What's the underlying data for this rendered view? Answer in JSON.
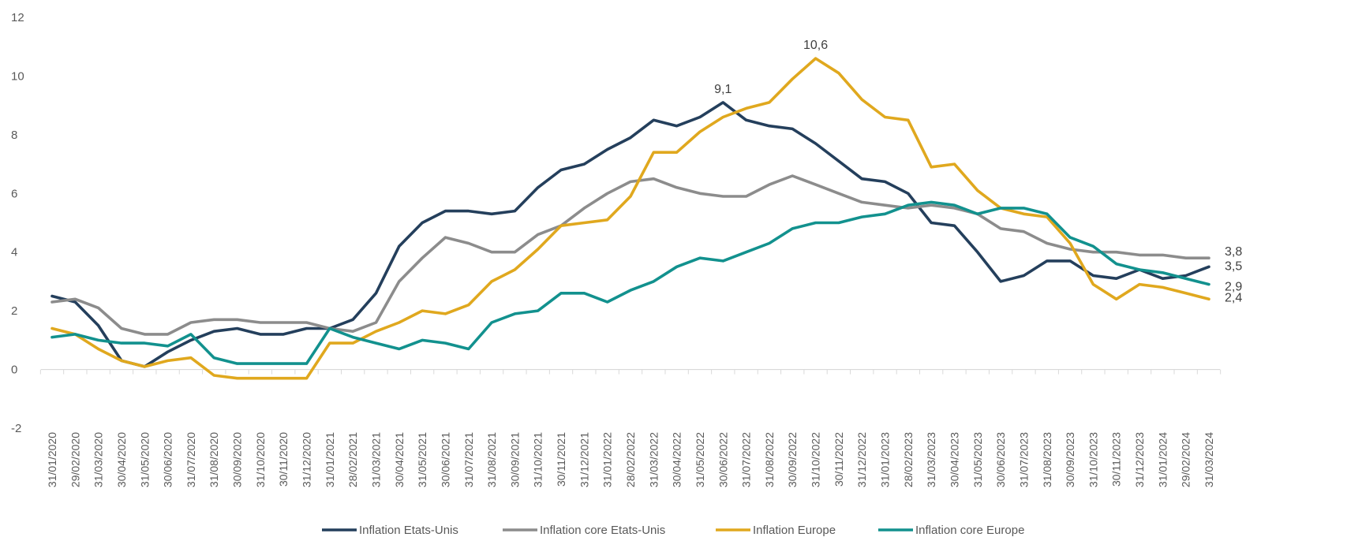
{
  "chart_data": {
    "type": "line",
    "title": "",
    "xlabel": "",
    "ylabel": "",
    "ylim": [
      -2,
      12
    ],
    "yticks": [
      "-2",
      "0",
      "2",
      "4",
      "6",
      "8",
      "10",
      "12"
    ],
    "ytick_values": [
      -2,
      0,
      2,
      4,
      6,
      8,
      10,
      12
    ],
    "legend_position": "bottom",
    "categories": [
      "31/01/2020",
      "29/02/2020",
      "31/03/2020",
      "30/04/2020",
      "31/05/2020",
      "30/06/2020",
      "31/07/2020",
      "31/08/2020",
      "30/09/2020",
      "31/10/2020",
      "30/11/2020",
      "31/12/2020",
      "31/01/2021",
      "28/02/2021",
      "31/03/2021",
      "30/04/2021",
      "31/05/2021",
      "30/06/2021",
      "31/07/2021",
      "31/08/2021",
      "30/09/2021",
      "31/10/2021",
      "30/11/2021",
      "31/12/2021",
      "31/01/2022",
      "28/02/2022",
      "31/03/2022",
      "30/04/2022",
      "31/05/2022",
      "30/06/2022",
      "31/07/2022",
      "31/08/2022",
      "30/09/2022",
      "31/10/2022",
      "30/11/2022",
      "31/12/2022",
      "31/01/2023",
      "28/02/2023",
      "31/03/2023",
      "30/04/2023",
      "31/05/2023",
      "30/06/2023",
      "31/07/2023",
      "31/08/2023",
      "30/09/2023",
      "31/10/2023",
      "30/11/2023",
      "31/12/2023",
      "31/01/2024",
      "29/02/2024",
      "31/03/2024"
    ],
    "series": [
      {
        "name": "Inflation Etats-Unis",
        "color": "#243F5C",
        "values": [
          2.5,
          2.3,
          1.5,
          0.3,
          0.1,
          0.6,
          1.0,
          1.3,
          1.4,
          1.2,
          1.2,
          1.4,
          1.4,
          1.7,
          2.6,
          4.2,
          5.0,
          5.4,
          5.4,
          5.3,
          5.4,
          6.2,
          6.8,
          7.0,
          7.5,
          7.9,
          8.5,
          8.3,
          8.6,
          9.1,
          8.5,
          8.3,
          8.2,
          7.7,
          7.1,
          6.5,
          6.4,
          6.0,
          5.0,
          4.9,
          4.0,
          3.0,
          3.2,
          3.7,
          3.7,
          3.2,
          3.1,
          3.4,
          3.1,
          3.2,
          3.5
        ]
      },
      {
        "name": "Inflation core Etats-Unis",
        "color": "#8C8C8C",
        "values": [
          2.3,
          2.4,
          2.1,
          1.4,
          1.2,
          1.2,
          1.6,
          1.7,
          1.7,
          1.6,
          1.6,
          1.6,
          1.4,
          1.3,
          1.6,
          3.0,
          3.8,
          4.5,
          4.3,
          4.0,
          4.0,
          4.6,
          4.9,
          5.5,
          6.0,
          6.4,
          6.5,
          6.2,
          6.0,
          5.9,
          5.9,
          6.3,
          6.6,
          6.3,
          6.0,
          5.7,
          5.6,
          5.5,
          5.6,
          5.5,
          5.3,
          4.8,
          4.7,
          4.3,
          4.1,
          4.0,
          4.0,
          3.9,
          3.9,
          3.8,
          3.8
        ]
      },
      {
        "name": "Inflation Europe",
        "color": "#E0A81E",
        "values": [
          1.4,
          1.2,
          0.7,
          0.3,
          0.1,
          0.3,
          0.4,
          -0.2,
          -0.3,
          -0.3,
          -0.3,
          -0.3,
          0.9,
          0.9,
          1.3,
          1.6,
          2.0,
          1.9,
          2.2,
          3.0,
          3.4,
          4.1,
          4.9,
          5.0,
          5.1,
          5.9,
          7.4,
          7.4,
          8.1,
          8.6,
          8.9,
          9.1,
          9.9,
          10.6,
          10.1,
          9.2,
          8.6,
          8.5,
          6.9,
          7.0,
          6.1,
          5.5,
          5.3,
          5.2,
          4.3,
          2.9,
          2.4,
          2.9,
          2.8,
          2.6,
          2.4
        ]
      },
      {
        "name": "Inflation core Europe",
        "color": "#12918E",
        "values": [
          1.1,
          1.2,
          1.0,
          0.9,
          0.9,
          0.8,
          1.2,
          0.4,
          0.2,
          0.2,
          0.2,
          0.2,
          1.4,
          1.1,
          0.9,
          0.7,
          1.0,
          0.9,
          0.7,
          1.6,
          1.9,
          2.0,
          2.6,
          2.6,
          2.3,
          2.7,
          3.0,
          3.5,
          3.8,
          3.7,
          4.0,
          4.3,
          4.8,
          5.0,
          5.0,
          5.2,
          5.3,
          5.6,
          5.7,
          5.6,
          5.3,
          5.5,
          5.5,
          5.3,
          4.5,
          4.2,
          3.6,
          3.4,
          3.3,
          3.1,
          2.9
        ]
      }
    ],
    "annotations": [
      {
        "text": "9,1",
        "series": 0,
        "index": 29,
        "placement": "above"
      },
      {
        "text": "10,6",
        "series": 2,
        "index": 33,
        "placement": "above"
      },
      {
        "text": "3,8",
        "series": 1,
        "index": 50,
        "placement": "right"
      },
      {
        "text": "3,5",
        "series": 0,
        "index": 50,
        "placement": "right"
      },
      {
        "text": "2,9",
        "series": 3,
        "index": 50,
        "placement": "right"
      },
      {
        "text": "2,4",
        "series": 2,
        "index": 50,
        "placement": "right"
      }
    ]
  }
}
